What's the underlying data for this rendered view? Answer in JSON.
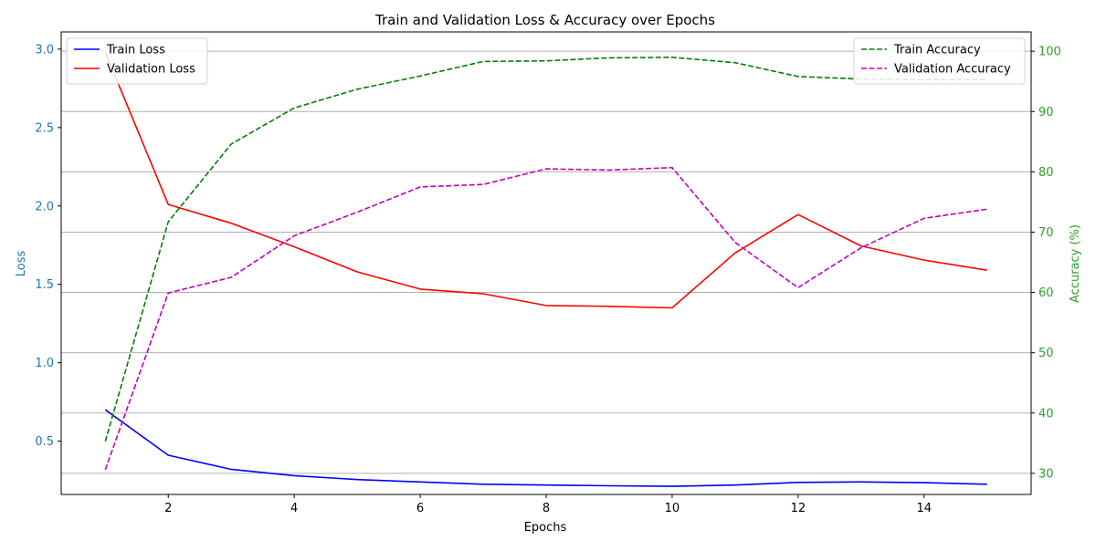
{
  "chart_data": {
    "type": "line",
    "title": "Train and Validation Loss & Accuracy over Epochs",
    "xlabel": "Epochs",
    "ylabel_left": "Loss",
    "ylabel_right": "Accuracy (%)",
    "xlim": [
      0.3,
      15.7
    ],
    "ylim_left": [
      0.16,
      3.11
    ],
    "ylim_right": [
      26.5,
      103.2
    ],
    "x_ticks": [
      2,
      4,
      6,
      8,
      10,
      12,
      14
    ],
    "y_ticks_left": [
      0.5,
      1.0,
      1.5,
      2.0,
      2.5,
      3.0
    ],
    "y_tick_labels_left": [
      "0.5",
      "1.0",
      "1.5",
      "2.0",
      "2.5",
      "3.0"
    ],
    "y_ticks_right": [
      30,
      40,
      50,
      60,
      70,
      80,
      90,
      100
    ],
    "grid": "horizontal lines at right-axis ticks",
    "legend_left": {
      "placement": "upper left",
      "entries": [
        "Train Loss",
        "Validation Loss"
      ]
    },
    "legend_right": {
      "placement": "upper right",
      "entries": [
        "Train Accuracy",
        "Validation Accuracy"
      ]
    },
    "x": [
      1,
      2,
      3,
      4,
      5,
      6,
      7,
      8,
      9,
      10,
      11,
      12,
      13,
      14,
      15
    ],
    "series": [
      {
        "name": "Train Loss",
        "axis": "left",
        "color": "#0000ff",
        "dash": "solid",
        "values": [
          0.7,
          0.41,
          0.32,
          0.28,
          0.255,
          0.24,
          0.225,
          0.22,
          0.215,
          0.212,
          0.22,
          0.237,
          0.24,
          0.235,
          0.225
        ]
      },
      {
        "name": "Validation Loss",
        "axis": "left",
        "color": "#ff0000",
        "dash": "solid",
        "values": [
          2.98,
          2.01,
          1.89,
          1.74,
          1.58,
          1.47,
          1.44,
          1.365,
          1.36,
          1.35,
          1.7,
          1.945,
          1.745,
          1.655,
          1.59
        ]
      },
      {
        "name": "Train Accuracy",
        "axis": "right",
        "color": "#008000",
        "dash": "dashed",
        "values": [
          35.3,
          71.7,
          84.6,
          90.6,
          93.7,
          95.9,
          98.3,
          98.4,
          98.9,
          99.0,
          98.1,
          95.8,
          95.4,
          95.3,
          95.3
        ]
      },
      {
        "name": "Validation Accuracy",
        "axis": "right",
        "color": "#bf00bf",
        "dash": "dashed",
        "values": [
          30.6,
          59.9,
          62.5,
          69.4,
          73.3,
          77.5,
          77.9,
          80.5,
          80.3,
          80.7,
          68.3,
          60.8,
          67.4,
          72.3,
          73.8
        ]
      }
    ],
    "colors": {
      "left_axis": "#1f77b4",
      "right_axis": "#2ca02c",
      "grid": "#b0b0b0"
    }
  }
}
